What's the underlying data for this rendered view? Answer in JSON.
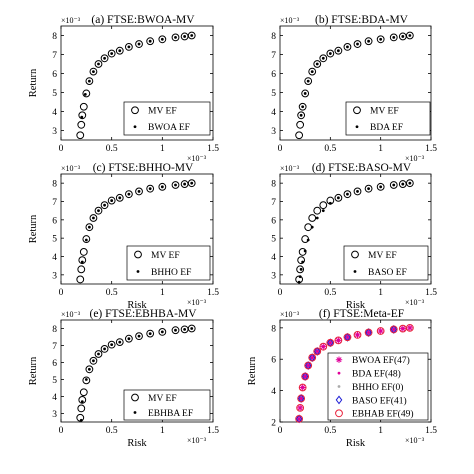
{
  "figure": {
    "panels": [
      {
        "title": "(a) FTSE:BWOA-MV",
        "xlabel": "",
        "ylabel": "Return",
        "x_exponent": "×10⁻³",
        "y_exponent": "×10⁻³",
        "legend": [
          "MV EF",
          "BWOA EF"
        ]
      },
      {
        "title": "(b) FTSE:BDA-MV",
        "xlabel": "",
        "ylabel": "",
        "x_exponent": "×10⁻³",
        "y_exponent": "×10⁻³",
        "legend": [
          "MV EF",
          "BDA EF"
        ]
      },
      {
        "title": "(c) FTSE:BHHO-MV",
        "xlabel": "Risk",
        "ylabel": "Return",
        "x_exponent": "×10⁻³",
        "y_exponent": "×10⁻³",
        "legend": [
          "MV EF",
          "BHHO EF"
        ]
      },
      {
        "title": "(d) FTSE:BASO-MV",
        "xlabel": "Risk",
        "ylabel": "",
        "x_exponent": "×10⁻³",
        "y_exponent": "×10⁻³",
        "legend": [
          "MV EF",
          "BASO EF"
        ]
      },
      {
        "title": "(e) FTSE:EBHBA-MV",
        "xlabel": "Risk",
        "ylabel": "Return",
        "x_exponent": "×10⁻³",
        "y_exponent": "×10⁻³",
        "legend": [
          "MV EF",
          "EBHBA EF"
        ]
      },
      {
        "title": "(f) FTSE:Meta-EF",
        "xlabel": "Risk",
        "ylabel": "Return",
        "x_exponent": "×10⁻³",
        "y_exponent": "×10⁻³",
        "legend": [
          "BWOA EF(47)",
          "BDA EF(48)",
          "BHHO EF(0)",
          "BASO EF(41)",
          "EBHAB EF(49)"
        ]
      }
    ]
  },
  "chart_data": [
    {
      "type": "scatter",
      "title": "(a) FTSE:BWOA-MV",
      "ylabel": "Return",
      "xlabel": "",
      "xlim": [
        0,
        0.0015
      ],
      "ylim": [
        0.0025,
        0.0085
      ],
      "xticks": [
        "0",
        "0.5",
        "1",
        "1.5"
      ],
      "yticks": [
        "3",
        "4",
        "5",
        "6",
        "7",
        "8"
      ],
      "legend_position": "bottom-right",
      "grid": false,
      "series": [
        {
          "name": "MV EF",
          "marker": "open-circle",
          "x": [
            0.00019,
            0.0002,
            0.00021,
            0.000225,
            0.00025,
            0.00028,
            0.00032,
            0.00037,
            0.00043,
            0.0005,
            0.00058,
            0.00067,
            0.00077,
            0.00088,
            0.001,
            0.00113,
            0.00122,
            0.00129
          ],
          "y": [
            0.00275,
            0.0033,
            0.0038,
            0.00425,
            0.00495,
            0.0056,
            0.0061,
            0.0065,
            0.0068,
            0.00705,
            0.0072,
            0.0074,
            0.00755,
            0.0077,
            0.0078,
            0.0079,
            0.00795,
            0.008
          ]
        },
        {
          "name": "BWOA EF",
          "marker": "dot",
          "x": [
            0.000205,
            0.00024,
            0.00028,
            0.00032,
            0.00037,
            0.00043,
            0.0005,
            0.00058,
            0.00067,
            0.00077,
            0.00088,
            0.001,
            0.00113,
            0.00122,
            0.00129
          ],
          "y": [
            0.0037,
            0.0049,
            0.0056,
            0.0061,
            0.0065,
            0.0068,
            0.00705,
            0.0072,
            0.0074,
            0.00755,
            0.0077,
            0.0078,
            0.0079,
            0.00795,
            0.008
          ]
        }
      ]
    },
    {
      "type": "scatter",
      "title": "(b) FTSE:BDA-MV",
      "ylabel": "",
      "xlabel": "",
      "xlim": [
        0,
        0.0015
      ],
      "ylim": [
        0.0025,
        0.0085
      ],
      "xticks": [
        "0",
        "0.5",
        "1",
        "1.5"
      ],
      "yticks": [
        "3",
        "4",
        "5",
        "6",
        "7",
        "8"
      ],
      "legend_position": "bottom-right",
      "grid": false,
      "series": [
        {
          "name": "MV EF",
          "marker": "open-circle",
          "x": [
            0.00019,
            0.0002,
            0.00021,
            0.000225,
            0.00025,
            0.00028,
            0.00032,
            0.00037,
            0.00043,
            0.0005,
            0.00058,
            0.00067,
            0.00077,
            0.00088,
            0.001,
            0.00113,
            0.00122,
            0.00129
          ],
          "y": [
            0.00275,
            0.0033,
            0.0038,
            0.00425,
            0.00495,
            0.0056,
            0.0061,
            0.0065,
            0.0068,
            0.00705,
            0.0072,
            0.0074,
            0.00755,
            0.0077,
            0.0078,
            0.0079,
            0.00795,
            0.008
          ]
        },
        {
          "name": "BDA EF",
          "marker": "dot",
          "x": [
            0.00021,
            0.000225,
            0.00025,
            0.00028,
            0.00032,
            0.00037,
            0.00043,
            0.0005,
            0.00058,
            0.00067,
            0.00077,
            0.00088,
            0.001,
            0.00113,
            0.00122,
            0.00129
          ],
          "y": [
            0.0038,
            0.00425,
            0.00495,
            0.0056,
            0.0061,
            0.0065,
            0.0068,
            0.00705,
            0.0072,
            0.0074,
            0.00755,
            0.0077,
            0.0078,
            0.0079,
            0.00795,
            0.008
          ]
        }
      ]
    },
    {
      "type": "scatter",
      "title": "(c) FTSE:BHHO-MV",
      "ylabel": "Return",
      "xlabel": "Risk",
      "xlim": [
        0,
        0.0015
      ],
      "ylim": [
        0.0025,
        0.0085
      ],
      "xticks": [
        "0",
        "0.5",
        "1",
        "1.5"
      ],
      "yticks": [
        "3",
        "4",
        "5",
        "6",
        "7",
        "8"
      ],
      "legend_position": "bottom-right",
      "grid": false,
      "series": [
        {
          "name": "MV EF",
          "marker": "open-circle",
          "x": [
            0.00019,
            0.0002,
            0.00021,
            0.000225,
            0.00025,
            0.00028,
            0.00032,
            0.00037,
            0.00043,
            0.0005,
            0.00058,
            0.00067,
            0.00077,
            0.00088,
            0.001,
            0.00113,
            0.00122,
            0.00129
          ],
          "y": [
            0.00275,
            0.0033,
            0.0038,
            0.00425,
            0.00495,
            0.0056,
            0.0061,
            0.0065,
            0.0068,
            0.00705,
            0.0072,
            0.0074,
            0.00755,
            0.0077,
            0.0078,
            0.0079,
            0.00795,
            0.008
          ]
        },
        {
          "name": "BHHO EF",
          "marker": "dot",
          "x": [
            0.00021,
            0.00025,
            0.00028,
            0.00032,
            0.00037,
            0.00043,
            0.0005,
            0.00058,
            0.00067,
            0.00077,
            0.00088,
            0.001,
            0.00113,
            0.00122,
            0.00129
          ],
          "y": [
            0.0037,
            0.0049,
            0.0056,
            0.0061,
            0.0065,
            0.0068,
            0.00705,
            0.0072,
            0.0074,
            0.00755,
            0.0077,
            0.0078,
            0.0079,
            0.00795,
            0.008
          ]
        }
      ]
    },
    {
      "type": "scatter",
      "title": "(d) FTSE:BASO-MV",
      "ylabel": "",
      "xlabel": "Risk",
      "xlim": [
        0,
        0.0015
      ],
      "ylim": [
        0.0025,
        0.0085
      ],
      "xticks": [
        "0",
        "0.5",
        "1",
        "1.5"
      ],
      "yticks": [
        "3",
        "4",
        "5",
        "6",
        "7",
        "8"
      ],
      "legend_position": "bottom-right",
      "grid": false,
      "series": [
        {
          "name": "MV EF",
          "marker": "open-circle",
          "x": [
            0.00019,
            0.0002,
            0.00021,
            0.000225,
            0.00025,
            0.00028,
            0.00032,
            0.00037,
            0.00043,
            0.0005,
            0.00058,
            0.00067,
            0.00077,
            0.00088,
            0.001,
            0.00113,
            0.00122,
            0.00129
          ],
          "y": [
            0.00275,
            0.0033,
            0.0038,
            0.00425,
            0.00495,
            0.0056,
            0.0061,
            0.0065,
            0.0068,
            0.00705,
            0.0072,
            0.0074,
            0.00755,
            0.0077,
            0.0078,
            0.0079,
            0.00795,
            0.008
          ]
        },
        {
          "name": "BASO EF",
          "marker": "dot",
          "x": [
            0.00019,
            0.0002,
            0.00021,
            0.000225,
            0.00025,
            0.00028,
            0.00032,
            0.00037,
            0.00043,
            0.0005,
            0.00058,
            0.00067,
            0.00077,
            0.00088,
            0.001,
            0.00113,
            0.00122,
            0.00129
          ],
          "y": [
            0.0026,
            0.0029,
            0.0033,
            0.0037,
            0.0043,
            0.0049,
            0.0056,
            0.0061,
            0.0065,
            0.0069,
            0.0072,
            0.0074,
            0.00755,
            0.0077,
            0.0078,
            0.0079,
            0.00795,
            0.008
          ]
        }
      ]
    },
    {
      "type": "scatter",
      "title": "(e) FTSE:EBHBA-MV",
      "ylabel": "Return",
      "xlabel": "Risk",
      "xlim": [
        0,
        0.0015
      ],
      "ylim": [
        0.0025,
        0.0085
      ],
      "xticks": [
        "0",
        "0.5",
        "1",
        "1.5"
      ],
      "yticks": [
        "3",
        "4",
        "5",
        "6",
        "7",
        "8"
      ],
      "legend_position": "bottom-right",
      "grid": false,
      "series": [
        {
          "name": "MV EF",
          "marker": "open-circle",
          "x": [
            0.00019,
            0.0002,
            0.00021,
            0.000225,
            0.00025,
            0.00028,
            0.00032,
            0.00037,
            0.00043,
            0.0005,
            0.00058,
            0.00067,
            0.00077,
            0.00088,
            0.001,
            0.00113,
            0.00122,
            0.00129
          ],
          "y": [
            0.00275,
            0.0033,
            0.0038,
            0.00425,
            0.00495,
            0.0056,
            0.0061,
            0.0065,
            0.0068,
            0.00705,
            0.0072,
            0.0074,
            0.00755,
            0.0077,
            0.0078,
            0.0079,
            0.00795,
            0.008
          ]
        },
        {
          "name": "EBHBA EF",
          "marker": "dot",
          "x": [
            0.0002,
            0.00021,
            0.00025,
            0.00028,
            0.00032,
            0.00037,
            0.00043,
            0.0005,
            0.00058,
            0.00067,
            0.00077,
            0.00088,
            0.001,
            0.00113,
            0.00122,
            0.00129
          ],
          "y": [
            0.0026,
            0.0037,
            0.005,
            0.0056,
            0.0061,
            0.0065,
            0.0068,
            0.00705,
            0.0072,
            0.0074,
            0.00755,
            0.0077,
            0.0078,
            0.0079,
            0.00795,
            0.008
          ]
        }
      ]
    },
    {
      "type": "scatter",
      "title": "(f) FTSE:Meta-EF",
      "ylabel": "Return",
      "xlabel": "Risk",
      "xlim": [
        0,
        0.0015
      ],
      "ylim": [
        0.002,
        0.0085
      ],
      "xticks": [
        "0",
        "0.5",
        "1",
        "1.5"
      ],
      "yticks": [
        "2",
        "4",
        "6",
        "8"
      ],
      "legend_position": "bottom-right",
      "grid": false,
      "series": [
        {
          "name": "BWOA EF(47)",
          "marker": "asterisk",
          "color": "#e0009a",
          "x": [
            0.00019,
            0.0002,
            0.00021,
            0.000225,
            0.00025,
            0.00028,
            0.00032,
            0.00037,
            0.00043,
            0.0005,
            0.00058,
            0.00067,
            0.00077,
            0.00088,
            0.001,
            0.00113,
            0.00122,
            0.00129
          ],
          "y": [
            0.0022,
            0.0029,
            0.0035,
            0.0042,
            0.0049,
            0.0056,
            0.0061,
            0.0065,
            0.0068,
            0.00705,
            0.0072,
            0.0074,
            0.00755,
            0.0077,
            0.0078,
            0.0079,
            0.00795,
            0.008
          ]
        },
        {
          "name": "BDA EF(48)",
          "marker": "dot",
          "color": "#e0009a",
          "x": [
            0.00021,
            0.00025,
            0.00032,
            0.00043,
            0.00058,
            0.00077,
            0.001,
            0.00122
          ],
          "y": [
            0.0035,
            0.0049,
            0.0061,
            0.0068,
            0.0072,
            0.00755,
            0.0078,
            0.00795
          ]
        },
        {
          "name": "BHHO EF(0)",
          "marker": "dot",
          "color": "#aaaaaa",
          "x": [],
          "y": []
        },
        {
          "name": "BASO EF(41)",
          "marker": "open-diamond",
          "color": "#1f1fd6",
          "x": [
            0.00019,
            0.00021,
            0.00025,
            0.00028,
            0.00032,
            0.00037,
            0.0005,
            0.00067,
            0.00088,
            0.00113
          ],
          "y": [
            0.0022,
            0.0035,
            0.0049,
            0.0056,
            0.0061,
            0.0065,
            0.00705,
            0.0074,
            0.0077,
            0.0079
          ]
        },
        {
          "name": "EBHAB EF(49)",
          "marker": "open-circle",
          "color": "#e8203a",
          "x": [
            0.00019,
            0.0002,
            0.00021,
            0.000225,
            0.00025,
            0.00028,
            0.00032,
            0.00037,
            0.00043,
            0.0005,
            0.00058,
            0.00067,
            0.00077,
            0.00088,
            0.001,
            0.00113,
            0.00122,
            0.00129
          ],
          "y": [
            0.0022,
            0.0029,
            0.0035,
            0.0042,
            0.0049,
            0.0056,
            0.0061,
            0.0065,
            0.0068,
            0.00705,
            0.0072,
            0.0074,
            0.00755,
            0.0077,
            0.0078,
            0.0079,
            0.00795,
            0.008
          ]
        }
      ]
    }
  ]
}
